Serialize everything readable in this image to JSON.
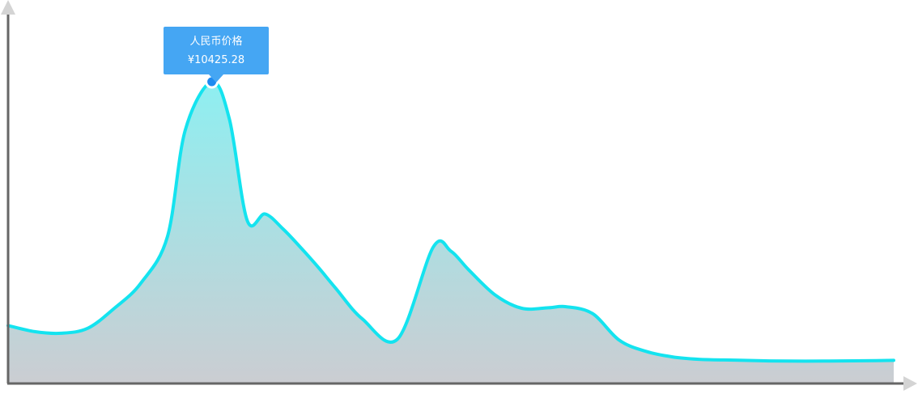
{
  "chart_data": {
    "type": "area",
    "x": [
      0,
      3,
      6,
      9,
      12,
      15,
      18,
      20,
      23,
      25,
      27,
      29,
      31,
      33,
      35,
      37,
      40,
      44,
      48,
      50,
      52,
      55,
      58,
      61,
      63,
      66,
      69,
      72,
      75,
      78,
      82,
      86,
      90,
      94,
      98,
      100
    ],
    "series": [
      {
        "values": [
          1250,
          1020,
          960,
          1150,
          1900,
          2850,
          4600,
          8600,
          10425,
          9000,
          5200,
          5450,
          4900,
          4200,
          3450,
          2650,
          1500,
          750,
          4200,
          4050,
          3350,
          2400,
          1900,
          1920,
          1960,
          1700,
          700,
          280,
          70,
          -20,
          -50,
          -80,
          -90,
          -80,
          -70,
          -60
        ]
      }
    ],
    "ylim": [
      -900,
      13500
    ],
    "grid": false,
    "legend": "none",
    "line_color": "#14e3ef",
    "area_top_color": "#8eeff1",
    "area_bottom_color": "#cbcdd2",
    "axis_color": "#666666",
    "arrow_color": "#d4d4d4",
    "marker_color": "#1e8af0"
  },
  "tooltip": {
    "title": "人民币价格",
    "value": "¥10425.28",
    "background": "#45a6f3",
    "point_index": 8
  }
}
